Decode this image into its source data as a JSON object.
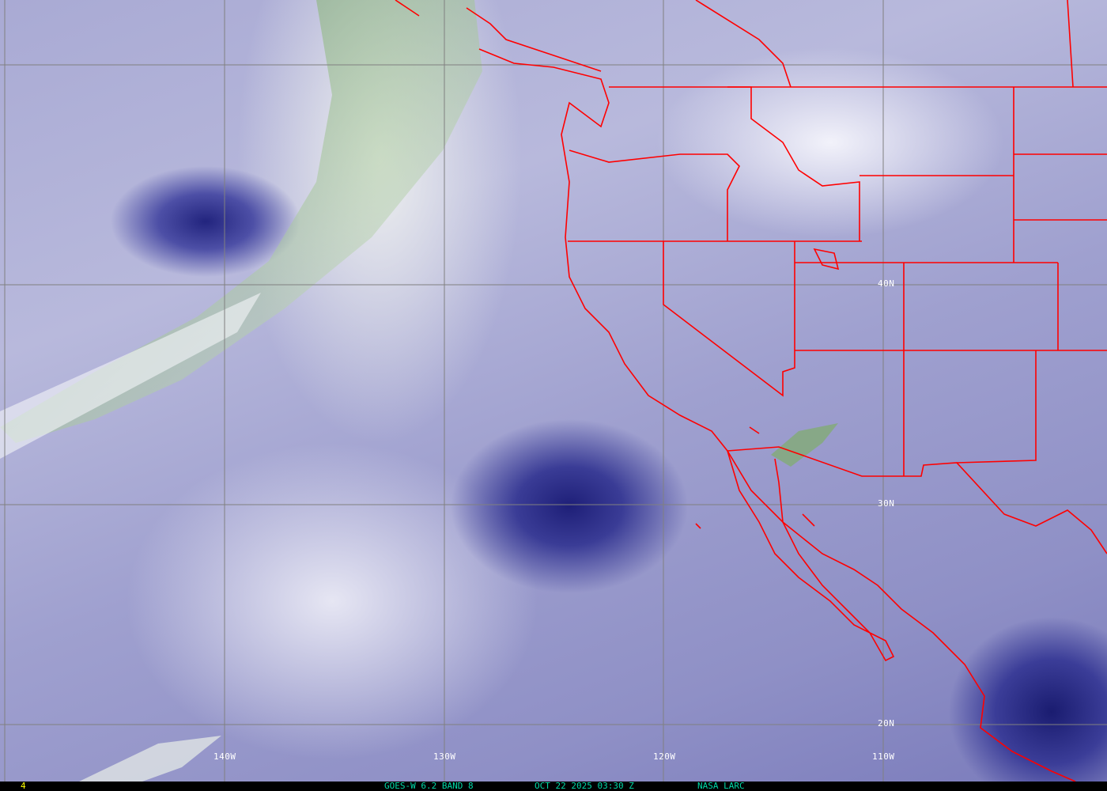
{
  "image": {
    "type": "satellite water vapor imagery",
    "colors": {
      "grid": "#808080",
      "boundaries": "#ff0000",
      "footer_text": "#00d8a8",
      "frame_number": "#ffff00",
      "labels": "#ffffff"
    }
  },
  "grid_labels": {
    "longitude": [
      "140W",
      "130W",
      "120W",
      "110W"
    ],
    "latitude": [
      "40N",
      "30N",
      "20N"
    ]
  },
  "footer": {
    "frame": "4",
    "satellite": "GOES-W 6.2 BAND 8",
    "datetime": "OCT 22 2025 03:30 Z",
    "source": "NASA LARC"
  }
}
